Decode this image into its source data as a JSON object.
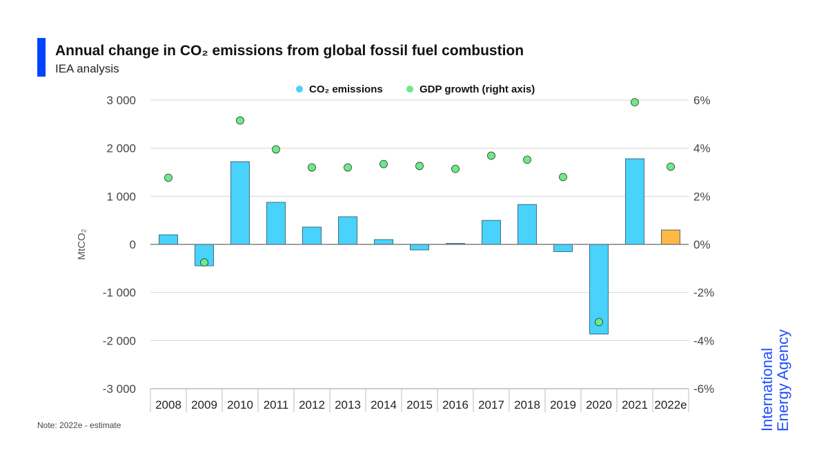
{
  "header": {
    "title": "Annual change in CO₂ emissions from global fossil fuel combustion",
    "subtitle": "IEA analysis"
  },
  "note": "Note: 2022e - estimate",
  "logo": {
    "line1": "International",
    "line2": "Energy Agency"
  },
  "colors": {
    "co2": "#48d2fc",
    "co2_estimate": "#ffb845",
    "gdp": "#6ee88c",
    "accent": "#0044ff",
    "logo": "#1f4fff"
  },
  "chart_data": {
    "type": "bar",
    "categories": [
      "2008",
      "2009",
      "2010",
      "2011",
      "2012",
      "2013",
      "2014",
      "2015",
      "2016",
      "2017",
      "2018",
      "2019",
      "2020",
      "2021",
      "2022e"
    ],
    "series": [
      {
        "name": "CO₂ emissions",
        "type": "bar",
        "axis": "left",
        "values": [
          200,
          -445,
          1720,
          875,
          360,
          575,
          100,
          -115,
          20,
          500,
          830,
          -150,
          -1865,
          1780,
          300
        ]
      },
      {
        "name": "GDP growth (right axis)",
        "type": "scatter",
        "axis": "right",
        "values": [
          2.77,
          -0.75,
          5.15,
          3.95,
          3.2,
          3.2,
          3.34,
          3.26,
          3.14,
          3.69,
          3.52,
          2.8,
          -3.23,
          5.91,
          3.23
        ]
      }
    ],
    "ylabel": "MtCO₂",
    "ylim": [
      -3000,
      3000
    ],
    "yticks": [
      "-3 000",
      "-2 000",
      "-1 000",
      "0",
      "1 000",
      "2 000",
      "3 000"
    ],
    "y2lim": [
      -6,
      6
    ],
    "y2ticks": [
      "-6%",
      "-4%",
      "-2%",
      "0%",
      "2%",
      "4%",
      "6%"
    ],
    "legend_position": "top-center",
    "grid": true
  }
}
